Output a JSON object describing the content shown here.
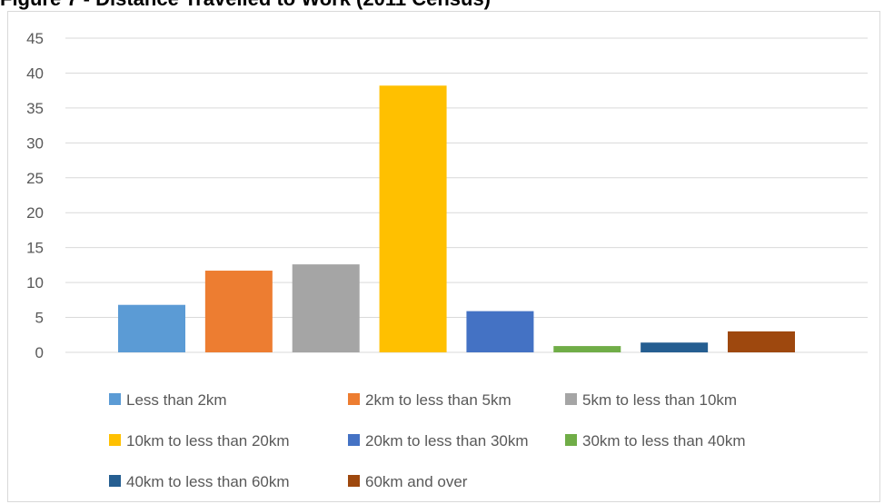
{
  "figure_title": "Figure 7 - Distance Travelled to Work (2011 Census)",
  "chart_data": {
    "type": "bar",
    "y_ticks": [
      "0",
      "5",
      "10",
      "15",
      "20",
      "25",
      "30",
      "35",
      "40",
      "45"
    ],
    "ylim": [
      0,
      45
    ],
    "grid": true,
    "legend_position": "bottom",
    "series": [
      {
        "name": "Less than 2km",
        "value": 6.8,
        "color": "#5b9bd5"
      },
      {
        "name": "2km to less than 5km",
        "value": 11.7,
        "color": "#ed7d31"
      },
      {
        "name": "5km to less than 10km",
        "value": 12.6,
        "color": "#a5a5a5"
      },
      {
        "name": "10km to less than 20km",
        "value": 38.2,
        "color": "#ffc000"
      },
      {
        "name": "20km to less than 30km",
        "value": 5.9,
        "color": "#4472c4"
      },
      {
        "name": "30km to less than 40km",
        "value": 0.9,
        "color": "#70ad47"
      },
      {
        "name": "40km to less than 60km",
        "value": 1.4,
        "color": "#255e91"
      },
      {
        "name": "60km and over",
        "value": 3.0,
        "color": "#9e480e"
      }
    ]
  }
}
